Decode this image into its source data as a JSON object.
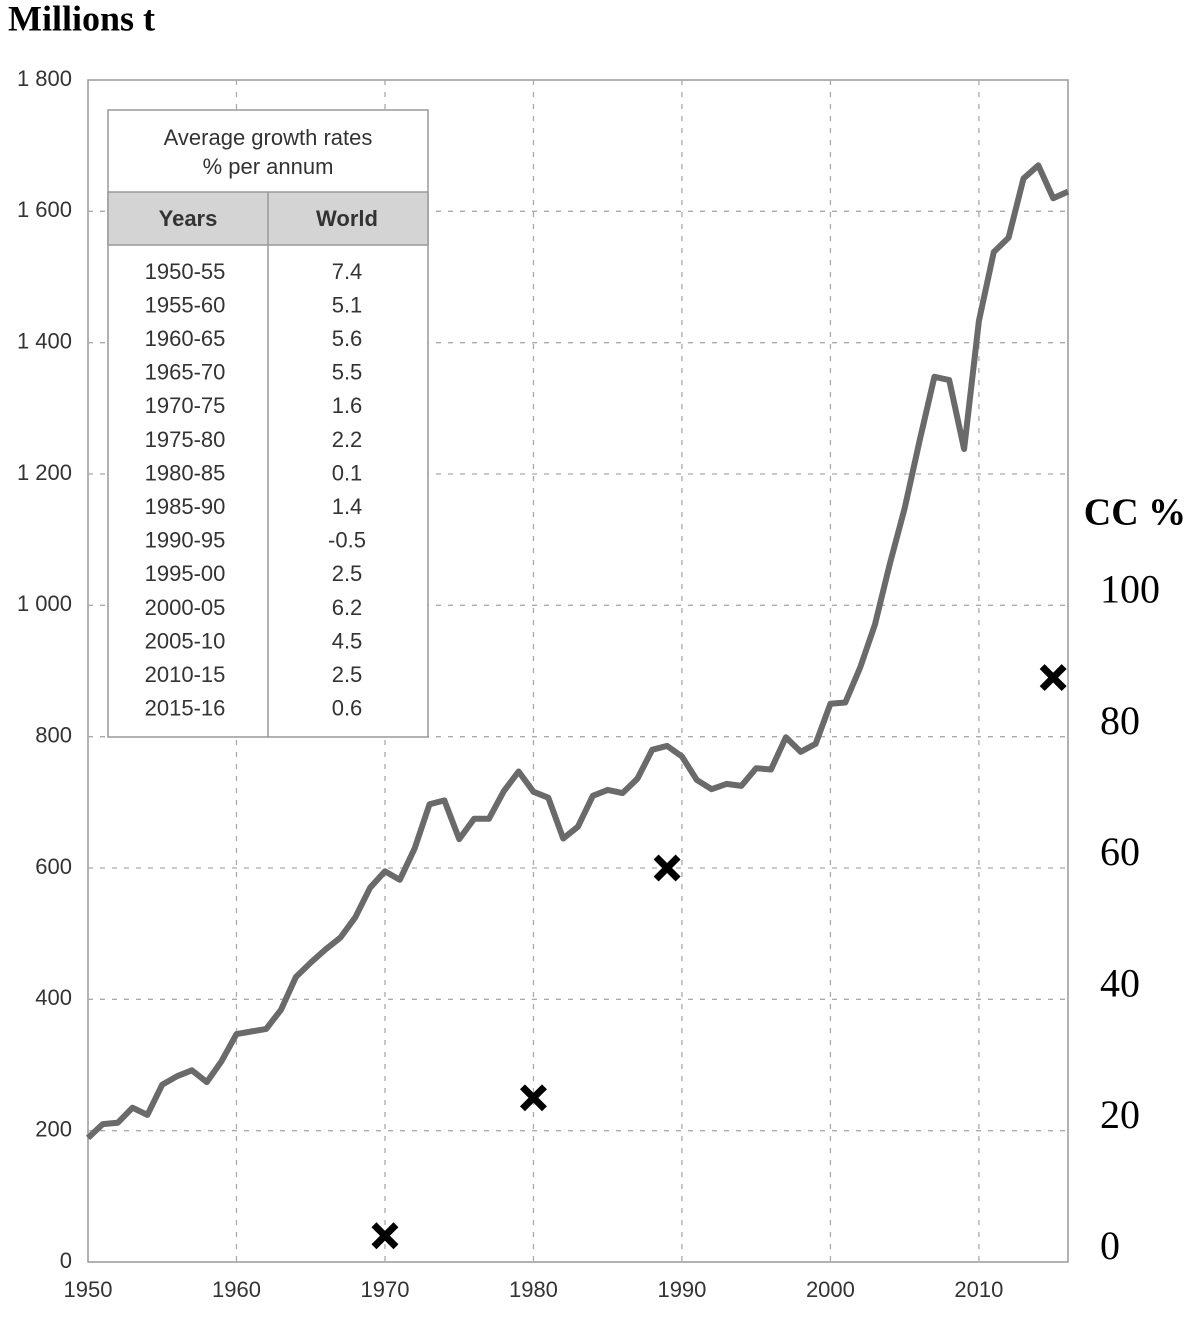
{
  "chart_data": {
    "type": "line",
    "ylabel": "Millions t",
    "y2label": "CC %",
    "x": [
      1950,
      1951,
      1952,
      1953,
      1954,
      1955,
      1956,
      1957,
      1958,
      1959,
      1960,
      1961,
      1962,
      1963,
      1964,
      1965,
      1966,
      1967,
      1968,
      1969,
      1970,
      1971,
      1972,
      1973,
      1974,
      1975,
      1976,
      1977,
      1978,
      1979,
      1980,
      1981,
      1982,
      1983,
      1984,
      1985,
      1986,
      1987,
      1988,
      1989,
      1990,
      1991,
      1992,
      1993,
      1994,
      1995,
      1996,
      1997,
      1998,
      1999,
      2000,
      2001,
      2002,
      2003,
      2004,
      2005,
      2006,
      2007,
      2008,
      2009,
      2010,
      2011,
      2012,
      2013,
      2014,
      2015,
      2016
    ],
    "series": [
      {
        "type": "line",
        "color": "#6a6a6a",
        "values": [
          189,
          210,
          212,
          235,
          224,
          270,
          283,
          292,
          274,
          306,
          347,
          351,
          355,
          384,
          434,
          456,
          476,
          494,
          525,
          570,
          595,
          582,
          630,
          697,
          703,
          644,
          675,
          675,
          717,
          747,
          716,
          707,
          645,
          663,
          710,
          719,
          714,
          736,
          780,
          786,
          770,
          734,
          720,
          728,
          725,
          752,
          750,
          799,
          777,
          789,
          850,
          852,
          905,
          971,
          1063,
          1148,
          1250,
          1348,
          1343,
          1238,
          1433,
          1538,
          1560,
          1650,
          1670,
          1620,
          1630
        ]
      },
      {
        "type": "scatter",
        "axis": "y2",
        "color": "#000000",
        "marker": "x",
        "x": [
          1970,
          1980,
          1989,
          2015
        ],
        "values": [
          4,
          25,
          60,
          89
        ]
      }
    ],
    "xlim": [
      1950,
      2016
    ],
    "xticks": [
      1950,
      1960,
      1970,
      1980,
      1990,
      2000,
      2010
    ],
    "ylim": [
      0,
      1800
    ],
    "yticks": [
      0,
      200,
      400,
      600,
      800,
      {
        "value": 1000,
        "label": "1 000"
      },
      {
        "value": 1200,
        "label": "1 200"
      },
      {
        "value": 1400,
        "label": "1 400"
      },
      {
        "value": 1600,
        "label": "1 600"
      },
      {
        "value": 1800,
        "label": "1 800"
      }
    ],
    "y2lim": [
      0,
      180
    ],
    "y2ticks": [
      0,
      20,
      40,
      60,
      80,
      100
    ],
    "grid": true,
    "table": {
      "title": [
        "Average growth rates",
        "% per annum"
      ],
      "columns": [
        "Years",
        "World"
      ],
      "rows": [
        [
          "1950-55",
          7.4
        ],
        [
          "1955-60",
          5.1
        ],
        [
          "1960-65",
          5.6
        ],
        [
          "1965-70",
          5.5
        ],
        [
          "1970-75",
          1.6
        ],
        [
          "1975-80",
          2.2
        ],
        [
          "1980-85",
          0.1
        ],
        [
          "1985-90",
          1.4
        ],
        [
          "1990-95",
          -0.5
        ],
        [
          "1995-00",
          2.5
        ],
        [
          "2000-05",
          6.2
        ],
        [
          "2005-10",
          4.5
        ],
        [
          "2010-15",
          2.5
        ],
        [
          "2015-16",
          0.6
        ]
      ]
    }
  }
}
